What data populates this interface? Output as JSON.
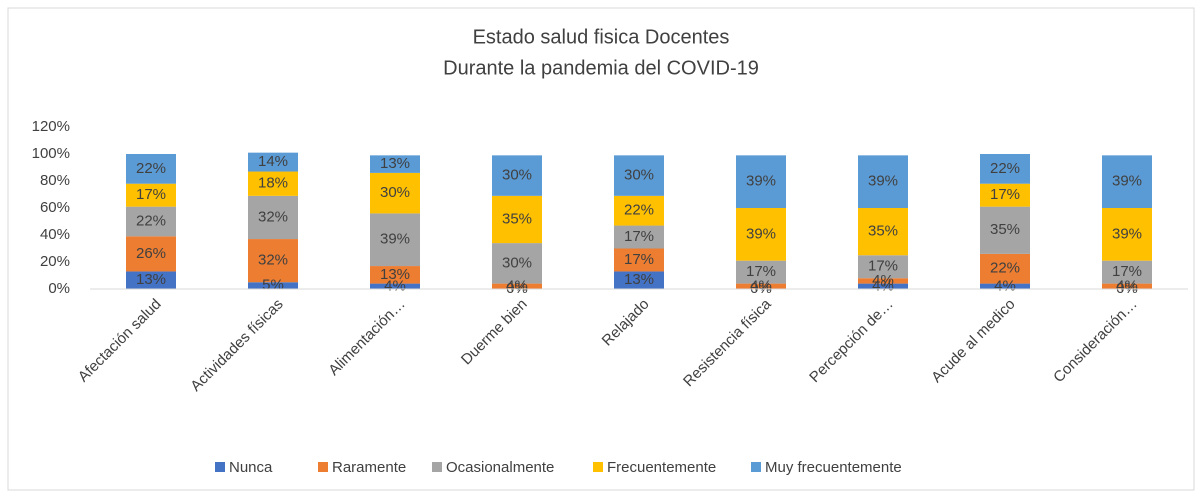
{
  "chart_data": {
    "type": "stacked_bar",
    "title": "Estado salud fisica Docentes",
    "subtitle": "Durante la pandemia del COVID-19",
    "categories": [
      "Afectación salud",
      "Actividades físicas",
      "Alimentación…",
      "Duerme bien",
      "Relajado",
      "Resistencia física",
      "Percepción de…",
      "Acude al medico",
      "Consideración…"
    ],
    "series": [
      {
        "name": "Nunca",
        "color": "#4472c4",
        "values": [
          13,
          5,
          4,
          0,
          13,
          0,
          4,
          4,
          0
        ],
        "value_labels": [
          "13%",
          "5%",
          "4%",
          "0%",
          "13%",
          "0%",
          "4%",
          "4%",
          "0%"
        ]
      },
      {
        "name": "Raramente",
        "color": "#ed7d31",
        "values": [
          26,
          32,
          13,
          4,
          17,
          4,
          4,
          22,
          4
        ],
        "value_labels": [
          "26%",
          "32%",
          "13%",
          "4%",
          "17%",
          "4%",
          "4%",
          "22%",
          "4%"
        ]
      },
      {
        "name": "Ocasionalmente",
        "color": "#a5a5a5",
        "values": [
          22,
          32,
          39,
          30,
          17,
          17,
          17,
          35,
          17
        ],
        "value_labels": [
          "22%",
          "32%",
          "39%",
          "30%",
          "17%",
          "17%",
          "17%",
          "35%",
          "17%"
        ]
      },
      {
        "name": "Frecuentemente",
        "color": "#ffc000",
        "values": [
          17,
          18,
          30,
          35,
          22,
          39,
          35,
          17,
          39
        ],
        "value_labels": [
          "17%",
          "18%",
          "30%",
          "35%",
          "22%",
          "39%",
          "35%",
          "17%",
          "39%"
        ]
      },
      {
        "name": "Muy frecuentemente",
        "color": "#5b9bd5",
        "values": [
          22,
          14,
          13,
          30,
          30,
          39,
          39,
          22,
          39
        ],
        "value_labels": [
          "22%",
          "14%",
          "13%",
          "30%",
          "30%",
          "39%",
          "39%",
          "22%",
          "39%"
        ]
      }
    ],
    "ylim": [
      0,
      120
    ],
    "yticks": [
      {
        "value": 0,
        "label": "0%"
      },
      {
        "value": 20,
        "label": "20%"
      },
      {
        "value": 40,
        "label": "40%"
      },
      {
        "value": 60,
        "label": "60%"
      },
      {
        "value": 80,
        "label": "80%"
      },
      {
        "value": 100,
        "label": "100%"
      },
      {
        "value": 120,
        "label": "120%"
      }
    ],
    "grid": false,
    "legend": "bottom"
  }
}
